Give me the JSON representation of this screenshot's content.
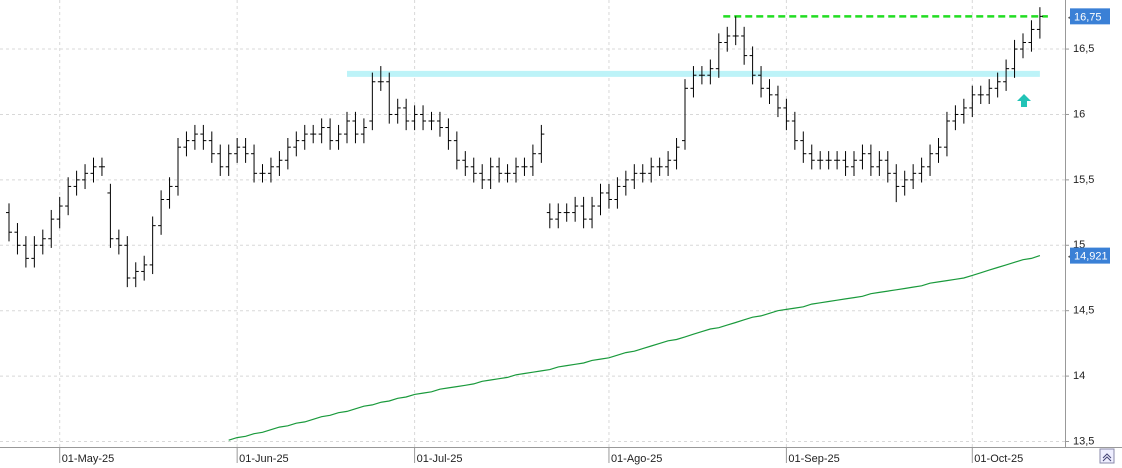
{
  "chart_data": {
    "type": "ohlc",
    "categories": [
      null,
      null,
      null,
      null,
      null,
      null,
      "01-May-25",
      null,
      null,
      null,
      null,
      null,
      null,
      null,
      null,
      null,
      null,
      null,
      null,
      null,
      null,
      null,
      null,
      null,
      null,
      null,
      null,
      "01-Jun-25",
      null,
      null,
      null,
      null,
      null,
      null,
      null,
      null,
      null,
      null,
      null,
      null,
      null,
      null,
      null,
      null,
      null,
      null,
      null,
      null,
      "01-Jul-25",
      null,
      null,
      null,
      null,
      null,
      null,
      null,
      null,
      null,
      null,
      null,
      null,
      null,
      null,
      null,
      null,
      null,
      null,
      null,
      null,
      null,
      null,
      "01-Ago-25",
      null,
      null,
      null,
      null,
      null,
      null,
      null,
      null,
      null,
      null,
      null,
      null,
      null,
      null,
      null,
      null,
      null,
      null,
      null,
      null,
      "01-Sep-25",
      null,
      null,
      null,
      null,
      null,
      null,
      null,
      null,
      null,
      null,
      null,
      null,
      null,
      null,
      null,
      null,
      null,
      null,
      null,
      null,
      null,
      "01-Oct-25",
      null,
      null,
      null,
      null,
      null,
      null,
      null,
      null
    ],
    "open": [
      15.25,
      15.1,
      15.0,
      14.9,
      15.0,
      15.05,
      15.2,
      15.3,
      15.45,
      15.5,
      15.55,
      15.6,
      15.4,
      15.05,
      15.0,
      14.75,
      14.8,
      14.85,
      15.15,
      15.35,
      15.45,
      15.75,
      15.8,
      15.85,
      15.8,
      15.7,
      15.6,
      15.7,
      15.75,
      15.7,
      15.55,
      15.55,
      15.6,
      15.65,
      15.75,
      15.8,
      15.85,
      15.85,
      15.9,
      15.8,
      15.85,
      15.95,
      15.85,
      15.95,
      16.25,
      16.25,
      16.0,
      16.05,
      15.95,
      16.0,
      15.95,
      15.95,
      15.9,
      15.8,
      15.65,
      15.6,
      15.55,
      15.5,
      15.6,
      15.55,
      15.55,
      15.6,
      15.6,
      15.7,
      15.25,
      15.2,
      15.25,
      15.25,
      15.3,
      15.2,
      15.3,
      15.4,
      15.35,
      15.45,
      15.5,
      15.55,
      15.55,
      15.6,
      15.6,
      15.65,
      15.8,
      16.2,
      16.3,
      16.3,
      16.35,
      16.55,
      16.6,
      16.6,
      16.45,
      16.3,
      16.2,
      16.15,
      16.05,
      15.95,
      15.8,
      15.7,
      15.65,
      15.65,
      15.65,
      15.65,
      15.6,
      15.65,
      15.7,
      15.6,
      15.65,
      15.55,
      15.45,
      15.5,
      15.55,
      15.6,
      15.7,
      15.75,
      15.95,
      16.0,
      16.05,
      16.15,
      16.15,
      16.2,
      16.25,
      16.35,
      16.5,
      16.55,
      16.65
    ],
    "high": [
      15.32,
      15.17,
      15.07,
      15.07,
      15.12,
      15.27,
      15.37,
      15.52,
      15.57,
      15.62,
      15.67,
      15.67,
      15.47,
      15.12,
      15.07,
      14.87,
      14.92,
      15.22,
      15.42,
      15.52,
      15.82,
      15.87,
      15.92,
      15.92,
      15.87,
      15.77,
      15.77,
      15.82,
      15.82,
      15.77,
      15.62,
      15.67,
      15.72,
      15.82,
      15.87,
      15.92,
      15.92,
      15.97,
      15.97,
      15.92,
      16.02,
      16.02,
      15.97,
      16.32,
      16.37,
      16.32,
      16.12,
      16.12,
      16.07,
      16.07,
      16.02,
      16.02,
      15.97,
      15.87,
      15.72,
      15.67,
      15.62,
      15.67,
      15.67,
      15.62,
      15.67,
      15.67,
      15.77,
      15.92,
      15.32,
      15.32,
      15.32,
      15.37,
      15.37,
      15.37,
      15.47,
      15.47,
      15.52,
      15.57,
      15.62,
      15.62,
      15.67,
      15.67,
      15.72,
      15.82,
      16.27,
      16.37,
      16.37,
      16.42,
      16.62,
      16.67,
      16.75,
      16.67,
      16.52,
      16.37,
      16.27,
      16.22,
      16.12,
      16.02,
      15.87,
      15.77,
      15.72,
      15.72,
      15.72,
      15.72,
      15.72,
      15.77,
      15.77,
      15.72,
      15.72,
      15.62,
      15.57,
      15.62,
      15.67,
      15.77,
      15.82,
      16.02,
      16.07,
      16.12,
      16.22,
      16.22,
      16.27,
      16.32,
      16.42,
      16.57,
      16.62,
      16.72,
      16.82
    ],
    "low": [
      15.03,
      14.93,
      14.83,
      14.83,
      14.93,
      14.98,
      15.13,
      15.23,
      15.38,
      15.43,
      15.48,
      15.53,
      14.98,
      14.93,
      14.68,
      14.68,
      14.73,
      14.78,
      15.08,
      15.28,
      15.38,
      15.68,
      15.73,
      15.73,
      15.63,
      15.53,
      15.53,
      15.63,
      15.63,
      15.48,
      15.48,
      15.48,
      15.53,
      15.58,
      15.68,
      15.73,
      15.78,
      15.78,
      15.73,
      15.73,
      15.78,
      15.78,
      15.78,
      15.88,
      16.18,
      15.93,
      15.93,
      15.88,
      15.88,
      15.88,
      15.88,
      15.83,
      15.73,
      15.58,
      15.53,
      15.48,
      15.43,
      15.43,
      15.48,
      15.48,
      15.48,
      15.53,
      15.53,
      15.63,
      15.13,
      15.13,
      15.18,
      15.18,
      15.13,
      15.13,
      15.23,
      15.28,
      15.28,
      15.38,
      15.43,
      15.48,
      15.48,
      15.53,
      15.53,
      15.58,
      15.73,
      16.13,
      16.23,
      16.23,
      16.28,
      16.48,
      16.53,
      16.38,
      16.23,
      16.13,
      16.08,
      15.98,
      15.88,
      15.73,
      15.63,
      15.58,
      15.58,
      15.58,
      15.58,
      15.53,
      15.53,
      15.58,
      15.53,
      15.53,
      15.48,
      15.33,
      15.38,
      15.43,
      15.48,
      15.53,
      15.63,
      15.68,
      15.88,
      15.93,
      15.98,
      16.08,
      16.08,
      16.13,
      16.18,
      16.28,
      16.43,
      16.48,
      16.58
    ],
    "close": [
      15.1,
      15.0,
      14.9,
      15.0,
      15.05,
      15.2,
      15.3,
      15.45,
      15.5,
      15.55,
      15.6,
      15.6,
      15.05,
      15.0,
      14.75,
      14.8,
      14.85,
      15.15,
      15.35,
      15.45,
      15.75,
      15.8,
      15.85,
      15.8,
      15.7,
      15.6,
      15.7,
      15.75,
      15.7,
      15.55,
      15.55,
      15.6,
      15.65,
      15.75,
      15.8,
      15.85,
      15.85,
      15.9,
      15.8,
      15.85,
      15.95,
      15.85,
      15.9,
      16.25,
      16.25,
      16.0,
      16.05,
      15.95,
      16.0,
      15.95,
      15.95,
      15.9,
      15.8,
      15.65,
      15.6,
      15.55,
      15.5,
      15.6,
      15.55,
      15.55,
      15.6,
      15.6,
      15.7,
      15.85,
      15.2,
      15.25,
      15.25,
      15.3,
      15.2,
      15.3,
      15.4,
      15.35,
      15.45,
      15.5,
      15.55,
      15.55,
      15.6,
      15.6,
      15.65,
      15.75,
      16.2,
      16.3,
      16.3,
      16.35,
      16.55,
      16.6,
      16.6,
      16.45,
      16.3,
      16.2,
      16.15,
      16.05,
      15.95,
      15.8,
      15.7,
      15.65,
      15.65,
      15.65,
      15.65,
      15.6,
      15.65,
      15.7,
      15.6,
      15.65,
      15.55,
      15.45,
      15.5,
      15.55,
      15.6,
      15.7,
      15.75,
      15.95,
      16.0,
      16.05,
      16.15,
      16.15,
      16.2,
      16.25,
      16.35,
      16.5,
      16.55,
      16.65,
      16.75
    ],
    "close_last_label": "16,75",
    "moving_average": {
      "color": "#1a9a3c",
      "last_label": "14,921",
      "values": [
        null,
        null,
        null,
        null,
        null,
        null,
        null,
        null,
        null,
        null,
        null,
        null,
        null,
        null,
        null,
        null,
        null,
        null,
        null,
        null,
        null,
        null,
        null,
        null,
        null,
        null,
        13.51,
        13.53,
        13.54,
        13.56,
        13.57,
        13.59,
        13.61,
        13.62,
        13.64,
        13.65,
        13.67,
        13.69,
        13.7,
        13.72,
        13.73,
        13.75,
        13.77,
        13.78,
        13.8,
        13.81,
        13.83,
        13.84,
        13.86,
        13.87,
        13.88,
        13.9,
        13.91,
        13.92,
        13.93,
        13.94,
        13.96,
        13.97,
        13.98,
        13.99,
        14.01,
        14.02,
        14.03,
        14.04,
        14.05,
        14.07,
        14.08,
        14.09,
        14.1,
        14.12,
        14.13,
        14.14,
        14.16,
        14.18,
        14.19,
        14.21,
        14.23,
        14.25,
        14.27,
        14.28,
        14.3,
        14.32,
        14.34,
        14.36,
        14.37,
        14.39,
        14.41,
        14.43,
        14.45,
        14.46,
        14.48,
        14.5,
        14.51,
        14.52,
        14.53,
        14.55,
        14.56,
        14.57,
        14.58,
        14.59,
        14.6,
        14.61,
        14.63,
        14.64,
        14.65,
        14.66,
        14.67,
        14.68,
        14.69,
        14.71,
        14.72,
        14.73,
        14.74,
        14.75,
        14.77,
        14.79,
        14.81,
        14.83,
        14.85,
        14.87,
        14.89,
        14.9,
        14.921
      ]
    },
    "resistance": {
      "value": 16.75,
      "color": "#22dd22"
    },
    "support_band": {
      "value": 16.31,
      "color": "#bdf3f8"
    },
    "ylim": [
      13.458,
      16.875
    ],
    "yticks": [
      {
        "value": 13.5,
        "label": "13,5"
      },
      14,
      {
        "value": 14.5,
        "label": "14,5"
      },
      15,
      {
        "value": 15.5,
        "label": "15,5"
      },
      16,
      {
        "value": 16.5,
        "label": "16,5"
      }
    ],
    "grid": true,
    "bar_color": "#000000"
  }
}
